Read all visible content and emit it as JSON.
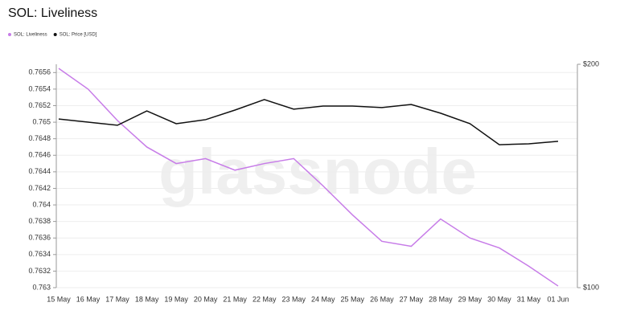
{
  "chart_data": {
    "type": "line",
    "title": "SOL: Liveliness",
    "watermark": "glassnode",
    "categories": [
      "15 May",
      "16 May",
      "17 May",
      "18 May",
      "19 May",
      "20 May",
      "21 May",
      "22 May",
      "23 May",
      "24 May",
      "25 May",
      "26 May",
      "27 May",
      "28 May",
      "29 May",
      "30 May",
      "31 May",
      "01 Jun"
    ],
    "series": [
      {
        "name": "SOL: Liveliness",
        "color": "#c77ce8",
        "values": [
          0.76565,
          0.7654,
          0.76502,
          0.7647,
          0.7645,
          0.76456,
          0.76442,
          0.7645,
          0.76456,
          0.76423,
          0.76388,
          0.76356,
          0.7635,
          0.76383,
          0.7636,
          0.76348,
          0.76326,
          0.76302
        ]
      },
      {
        "name": "SOL: Price [USD]",
        "color": "#111111",
        "axis": "y2",
        "values": [
          175.5,
          174.1,
          172.7,
          179.1,
          173.4,
          175.2,
          179.5,
          184.2,
          179.9,
          181.3,
          181.3,
          180.6,
          182.0,
          178.1,
          173.4,
          164.0,
          164.4,
          165.5
        ]
      }
    ],
    "ylim": [
      0.763,
      0.7657
    ],
    "yticks": [
      0.763,
      0.7632,
      0.7634,
      0.7636,
      0.7638,
      0.764,
      0.7642,
      0.7644,
      0.7646,
      0.7648,
      0.765,
      0.7652,
      0.7654,
      0.7656
    ],
    "y2lim": [
      100,
      200
    ],
    "y2ticks": [
      {
        "value": 100,
        "label": "$100"
      },
      {
        "value": 200,
        "label": "$200"
      }
    ],
    "grid": true,
    "legend": "top-left"
  }
}
